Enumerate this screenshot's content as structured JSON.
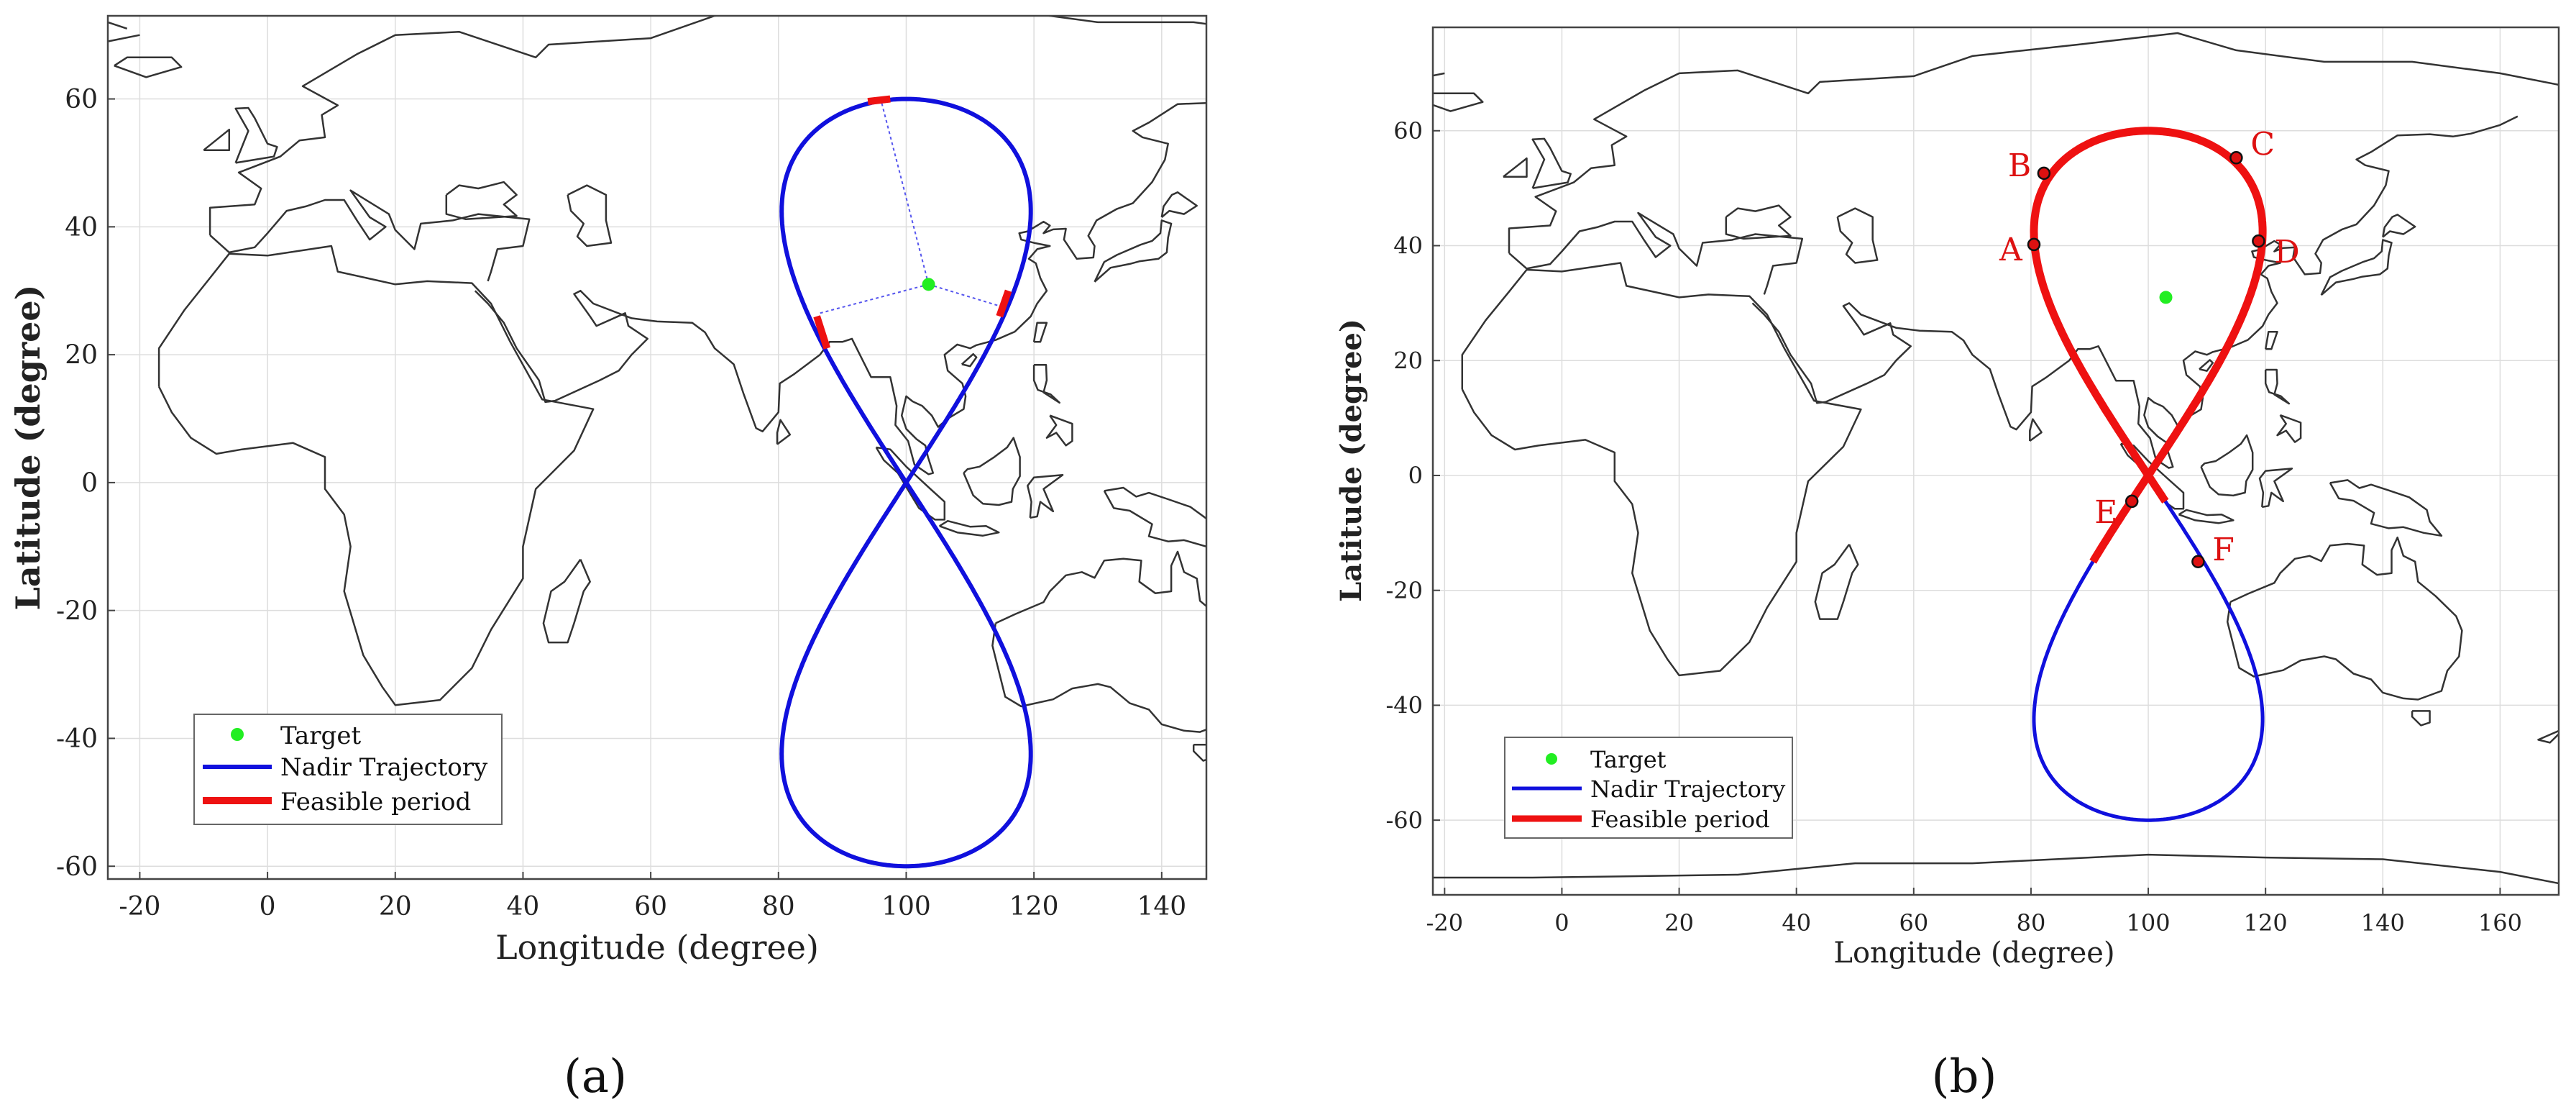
{
  "panel_labels": [
    "(a)",
    "(b)"
  ],
  "chart_data": [
    {
      "type": "line",
      "xlabel": "Longitude (degree)",
      "ylabel": "Latitude (degree)",
      "xlim": [
        -25,
        147
      ],
      "ylim": [
        -62,
        73
      ],
      "xticks": [
        -20,
        0,
        20,
        40,
        60,
        80,
        100,
        120,
        140
      ],
      "yticks": [
        -60,
        -40,
        -20,
        0,
        20,
        40,
        60
      ],
      "grid": true,
      "legend_placement": "bottom-left",
      "legend": [
        "Target",
        "Nadir Trajectory",
        "Feasible period"
      ],
      "target": {
        "x": 103.5,
        "y": 31
      },
      "colors": {
        "target": "#22ee22",
        "nadir": "#1010dd",
        "feasible": "#ee1111",
        "coast": "#333333",
        "grid": "#dddddd"
      },
      "series": [
        {
          "name": "Nadir Trajectory",
          "type": "figure-eight",
          "center_lon": 100,
          "lon_amplitude": 19.5,
          "lat_amplitude": 60
        },
        {
          "name": "Feasible period",
          "segments": [
            [
              94,
              59.6,
              97.5,
              60.0
            ],
            [
              86.0,
              26.0,
              87.6,
              21.0
            ],
            [
              116.0,
              30.0,
              114.6,
              26.0
            ]
          ]
        }
      ],
      "guide_lines": [
        [
          103.5,
          31,
          96,
          60
        ],
        [
          103.5,
          31,
          86.5,
          26.5
        ],
        [
          103.5,
          31,
          115,
          27.5
        ]
      ]
    },
    {
      "type": "line",
      "xlabel": "Longitude (degree)",
      "ylabel": "Latitude (degree)",
      "xlim": [
        -22,
        170
      ],
      "ylim": [
        -73,
        78
      ],
      "xticks": [
        -20,
        0,
        20,
        40,
        60,
        80,
        100,
        120,
        140,
        160
      ],
      "yticks": [
        -60,
        -40,
        -20,
        0,
        20,
        40,
        60
      ],
      "grid": true,
      "legend_placement": "bottom-left",
      "legend": [
        "Target",
        "Nadir Trajectory",
        "Feasible period"
      ],
      "target": {
        "x": 103,
        "y": 31
      },
      "colors": {
        "target": "#22ee22",
        "nadir": "#1010dd",
        "feasible": "#ee1111",
        "coast": "#333333",
        "grid": "#dddddd",
        "points": "#dd1111"
      },
      "series": [
        {
          "name": "Nadir Trajectory",
          "type": "figure-eight",
          "center_lon": 100,
          "lon_amplitude": 19.5,
          "lat_amplitude": 60
        },
        {
          "name": "Feasible period",
          "description": "upper lobe from A to E and F"
        }
      ],
      "points": [
        {
          "label": "A",
          "x": 80.5,
          "y": 40.2
        },
        {
          "label": "B",
          "x": 82.2,
          "y": 52.6
        },
        {
          "label": "C",
          "x": 115.0,
          "y": 55.3
        },
        {
          "label": "D",
          "x": 118.8,
          "y": 40.8
        },
        {
          "label": "E",
          "x": 97.2,
          "y": -4.5
        },
        {
          "label": "F",
          "x": 108.5,
          "y": -15.0
        }
      ]
    }
  ]
}
